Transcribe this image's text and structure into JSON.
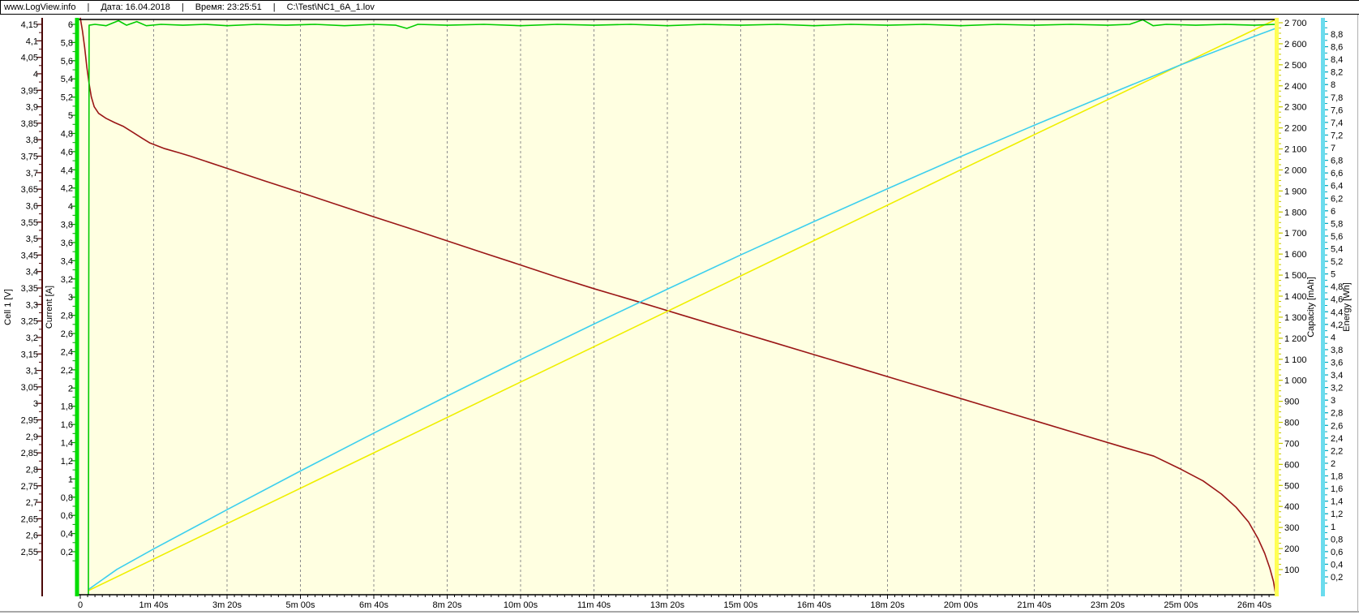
{
  "header": {
    "site": "www.LogView.info",
    "separator": "|",
    "date_label": "Дата: 16.04.2018",
    "time_label": "Время: 23:25:51",
    "file_path": "C:\\Test\\NC1_6A_1.lov"
  },
  "chart_data": {
    "type": "line",
    "title": "",
    "plot_bg_color": "#ffffe1",
    "gridline_color": "#8c8c8c",
    "grid": "vertical-dashed-only",
    "legend_position": "none",
    "x_axis": {
      "unit": "time",
      "ticks": [
        {
          "label": "0",
          "s": 0
        },
        {
          "label": "1m 40s",
          "s": 100
        },
        {
          "label": "3m 20s",
          "s": 200
        },
        {
          "label": "5m 00s",
          "s": 300
        },
        {
          "label": "6m 40s",
          "s": 400
        },
        {
          "label": "8m 20s",
          "s": 500
        },
        {
          "label": "10m 00s",
          "s": 600
        },
        {
          "label": "11m 40s",
          "s": 700
        },
        {
          "label": "13m 20s",
          "s": 800
        },
        {
          "label": "15m 00s",
          "s": 900
        },
        {
          "label": "16m 40s",
          "s": 1000
        },
        {
          "label": "18m 20s",
          "s": 1100
        },
        {
          "label": "20m 00s",
          "s": 1200
        },
        {
          "label": "21m 40s",
          "s": 1300
        },
        {
          "label": "23m 20s",
          "s": 1400
        },
        {
          "label": "25m 00s",
          "s": 1500
        },
        {
          "label": "26m 40s",
          "s": 1600
        }
      ],
      "range_s": [
        0,
        1629
      ]
    },
    "y_axes": [
      {
        "id": "voltage",
        "title": "Cell 1 [V]",
        "side": "left",
        "axis_color": "#4a0808",
        "tick_color": "#4a0808",
        "tick_labels": [
          "4,15",
          "4,1",
          "4,05",
          "4",
          "3,95",
          "3,9",
          "3,85",
          "3,8",
          "3,75",
          "3,7",
          "3,65",
          "3,6",
          "3,55",
          "3,5",
          "3,45",
          "3,4",
          "3,35",
          "3,3",
          "3,25",
          "3,2",
          "3,15",
          "3,1",
          "3,05",
          "3",
          "2,95",
          "2,9",
          "2,85",
          "2,8",
          "2,75",
          "2,7",
          "2,65",
          "2,6",
          "2,55"
        ]
      },
      {
        "id": "current",
        "title": "Current [A]",
        "side": "left",
        "axis_color": "#00dd00",
        "tick_color": "#009900",
        "tick_labels": [
          "6",
          "5,8",
          "5,6",
          "5,4",
          "5,2",
          "5",
          "4,8",
          "4,6",
          "4,4",
          "4,2",
          "4",
          "3,8",
          "3,6",
          "3,4",
          "3,2",
          "3",
          "2,8",
          "2,6",
          "2,4",
          "2,2",
          "2",
          "1,8",
          "1,6",
          "1,4",
          "1,2",
          "1",
          "0,8",
          "0,6",
          "0,4",
          "0,2"
        ]
      },
      {
        "id": "capacity",
        "title": "Capacity [mAh]",
        "side": "right",
        "axis_color": "#ffff55",
        "tick_color": "#c8c800",
        "tick_labels": [
          "2 700",
          "2 600",
          "2 500",
          "2 400",
          "2 300",
          "2 200",
          "2 100",
          "2 000",
          "1 900",
          "1 800",
          "1 700",
          "1 600",
          "1 500",
          "1 400",
          "1 300",
          "1 200",
          "1 100",
          "1 000",
          "900",
          "800",
          "700",
          "600",
          "500",
          "400",
          "300",
          "200",
          "100"
        ]
      },
      {
        "id": "energy",
        "title": "Energy [Wh]",
        "side": "right",
        "axis_color": "#6adcee",
        "tick_color": "#00a8c0",
        "tick_labels": [
          "8,8",
          "8,6",
          "8,4",
          "8,2",
          "8",
          "7,8",
          "7,6",
          "7,4",
          "7,2",
          "7",
          "6,8",
          "6,6",
          "6,4",
          "6,2",
          "6",
          "5,8",
          "5,6",
          "5,4",
          "5,2",
          "5",
          "4,8",
          "4,6",
          "4,4",
          "4,2",
          "4",
          "3,8",
          "3,6",
          "3,4",
          "3,2",
          "3",
          "2,8",
          "2,6",
          "2,4",
          "2,2",
          "2",
          "1,8",
          "1,6",
          "1,4",
          "1,2",
          "1",
          "0,8",
          "0,6",
          "0,4",
          "0,2"
        ]
      }
    ],
    "series": [
      {
        "id": "cell1-voltage",
        "name": "Cell 1 [V]",
        "axis": "voltage",
        "color": "#9a1616",
        "points": [
          [
            0,
            4.17
          ],
          [
            3,
            4.13
          ],
          [
            6,
            4.08
          ],
          [
            9,
            4.02
          ],
          [
            12,
            3.97
          ],
          [
            15,
            3.93
          ],
          [
            19,
            3.9
          ],
          [
            25,
            3.88
          ],
          [
            35,
            3.865
          ],
          [
            47,
            3.852
          ],
          [
            59,
            3.84
          ],
          [
            72,
            3.822
          ],
          [
            84,
            3.805
          ],
          [
            95,
            3.79
          ],
          [
            115,
            3.773
          ],
          [
            135,
            3.76
          ],
          [
            150,
            3.75
          ],
          [
            200,
            3.713
          ],
          [
            250,
            3.676
          ],
          [
            300,
            3.64
          ],
          [
            350,
            3.603
          ],
          [
            400,
            3.566
          ],
          [
            450,
            3.53
          ],
          [
            500,
            3.493
          ],
          [
            550,
            3.456
          ],
          [
            600,
            3.42
          ],
          [
            650,
            3.383
          ],
          [
            700,
            3.348
          ],
          [
            758,
            3.31
          ],
          [
            820,
            3.268
          ],
          [
            880,
            3.228
          ],
          [
            940,
            3.188
          ],
          [
            1000,
            3.148
          ],
          [
            1060,
            3.108
          ],
          [
            1120,
            3.068
          ],
          [
            1180,
            3.028
          ],
          [
            1240,
            2.988
          ],
          [
            1300,
            2.948
          ],
          [
            1360,
            2.908
          ],
          [
            1420,
            2.868
          ],
          [
            1463,
            2.84
          ],
          [
            1500,
            2.8
          ],
          [
            1530,
            2.765
          ],
          [
            1555,
            2.725
          ],
          [
            1575,
            2.685
          ],
          [
            1592,
            2.64
          ],
          [
            1605,
            2.59
          ],
          [
            1614,
            2.545
          ],
          [
            1621,
            2.5
          ],
          [
            1626,
            2.46
          ],
          [
            1629,
            2.42
          ]
        ]
      },
      {
        "id": "current",
        "name": "Current [A]",
        "axis": "current",
        "color": "#00cc00",
        "points": [
          [
            11,
            -0.27
          ],
          [
            12,
            5.99
          ],
          [
            20,
            6.0
          ],
          [
            35,
            5.985
          ],
          [
            52,
            6.04
          ],
          [
            63,
            5.99
          ],
          [
            77,
            6.03
          ],
          [
            90,
            5.985
          ],
          [
            110,
            6.0
          ],
          [
            140,
            5.99
          ],
          [
            170,
            6.0
          ],
          [
            200,
            5.985
          ],
          [
            240,
            6.0
          ],
          [
            280,
            5.99
          ],
          [
            320,
            6.0
          ],
          [
            360,
            5.985
          ],
          [
            400,
            6.0
          ],
          [
            430,
            5.99
          ],
          [
            445,
            5.955
          ],
          [
            460,
            6.0
          ],
          [
            500,
            5.99
          ],
          [
            550,
            6.0
          ],
          [
            600,
            5.985
          ],
          [
            650,
            6.0
          ],
          [
            700,
            5.99
          ],
          [
            750,
            6.0
          ],
          [
            800,
            5.985
          ],
          [
            850,
            6.0
          ],
          [
            900,
            5.99
          ],
          [
            950,
            6.0
          ],
          [
            1000,
            5.985
          ],
          [
            1050,
            6.0
          ],
          [
            1100,
            5.99
          ],
          [
            1150,
            6.0
          ],
          [
            1200,
            5.985
          ],
          [
            1250,
            6.0
          ],
          [
            1300,
            5.99
          ],
          [
            1350,
            6.0
          ],
          [
            1400,
            5.99
          ],
          [
            1430,
            6.0
          ],
          [
            1448,
            6.05
          ],
          [
            1462,
            5.985
          ],
          [
            1480,
            6.0
          ],
          [
            1520,
            5.99
          ],
          [
            1560,
            6.0
          ],
          [
            1600,
            5.99
          ],
          [
            1629,
            6.0
          ]
        ]
      },
      {
        "id": "capacity",
        "name": "Capacity [mAh]",
        "axis": "capacity",
        "color": "#efef00",
        "points": [
          [
            11,
            0
          ],
          [
            400,
            655
          ],
          [
            800,
            1328
          ],
          [
            1200,
            2001
          ],
          [
            1629,
            2715
          ]
        ]
      },
      {
        "id": "energy",
        "name": "Energy [Wh]",
        "axis": "energy",
        "color": "#3ccfee",
        "points": [
          [
            11,
            0
          ],
          [
            50,
            0.32
          ],
          [
            100,
            0.642
          ],
          [
            200,
            1.264
          ],
          [
            300,
            1.877
          ],
          [
            400,
            2.478
          ],
          [
            500,
            3.066
          ],
          [
            600,
            3.642
          ],
          [
            700,
            4.206
          ],
          [
            800,
            4.759
          ],
          [
            900,
            5.301
          ],
          [
            1000,
            5.83
          ],
          [
            1100,
            6.35
          ],
          [
            1200,
            6.86
          ],
          [
            1300,
            7.355
          ],
          [
            1400,
            7.84
          ],
          [
            1500,
            8.314
          ],
          [
            1600,
            8.764
          ],
          [
            1629,
            8.89
          ]
        ]
      }
    ]
  }
}
